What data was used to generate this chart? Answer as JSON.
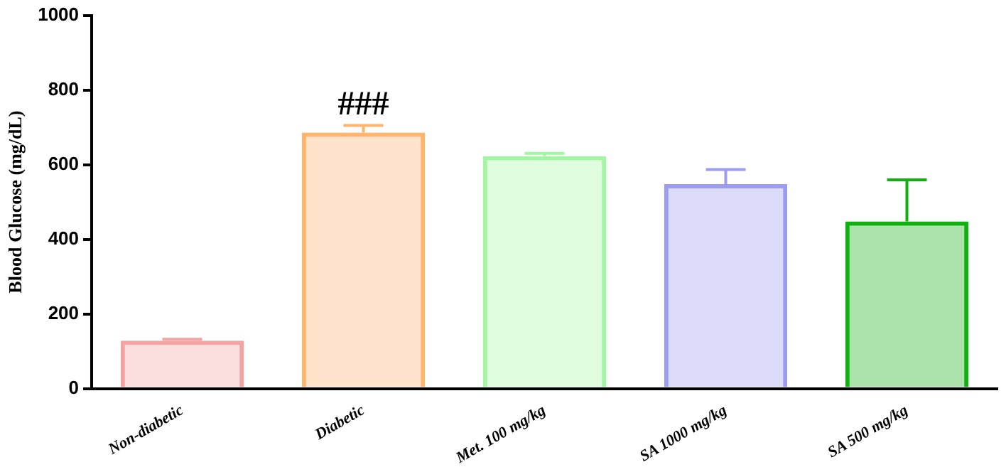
{
  "chart_data": {
    "type": "bar",
    "ylabel": "Blood Glucose (mg/dL)",
    "categories": [
      "Non-diabetic",
      "Diabetic",
      "Met. 100 mg/kg",
      "SA 1000 mg/kg",
      "SA 500 mg/kg"
    ],
    "values": [
      128,
      686,
      623,
      548,
      448
    ],
    "errors": [
      [
        128,
        132
      ],
      [
        686,
        705
      ],
      [
        623,
        630
      ],
      [
        548,
        587
      ],
      [
        448,
        559
      ]
    ],
    "colors": [
      "#f4a3a3",
      "#ffb36b",
      "#a3f5a3",
      "#9c9cf2",
      "#11b011"
    ],
    "ylim": [
      0,
      1000
    ],
    "yticks": [
      0,
      200,
      400,
      600,
      800,
      1000
    ],
    "grid": false,
    "legend": false,
    "annotations": [
      {
        "text": "###",
        "x": "Diabetic",
        "y": 705
      }
    ]
  }
}
